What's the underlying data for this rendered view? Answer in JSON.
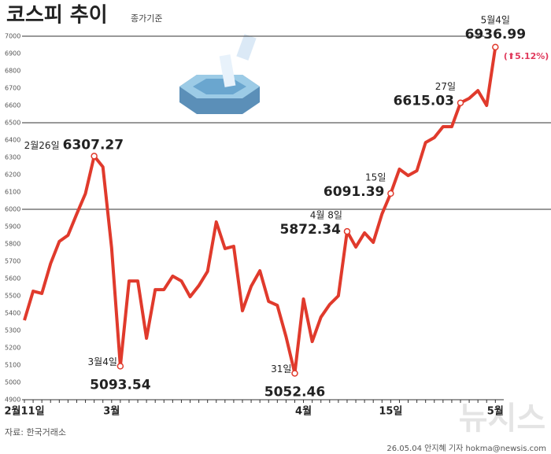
{
  "chart_data": {
    "type": "line",
    "title": "코스피 추이",
    "subtitle": "종가기준",
    "categories": [
      "2월11일",
      null,
      null,
      null,
      null,
      null,
      null,
      null,
      null,
      null,
      "3월",
      null,
      null,
      null,
      null,
      null,
      null,
      null,
      null,
      null,
      null,
      null,
      null,
      null,
      null,
      null,
      null,
      null,
      null,
      null,
      null,
      null,
      "4월",
      null,
      null,
      null,
      null,
      null,
      null,
      null,
      null,
      null,
      "15일",
      null,
      null,
      null,
      null,
      null,
      null,
      null,
      null,
      null,
      null,
      null,
      "5월"
    ],
    "series": [
      {
        "name": "코스피",
        "color": "#e03a2c",
        "values": [
          5359,
          5527,
          5514,
          5686,
          5814,
          5850,
          5973,
          6091,
          6307.27,
          6245,
          5777,
          5093.54,
          5586,
          5586,
          5255,
          5536,
          5536,
          5614,
          5586,
          5495,
          5559,
          5641,
          5927,
          5773,
          5786,
          5414,
          5555,
          5645,
          5468,
          5445,
          5264,
          5052.46,
          5482,
          5236,
          5377,
          5450,
          5500,
          5872.34,
          5782,
          5864,
          5809,
          5973,
          6091.39,
          6232,
          6195,
          6223,
          6386,
          6414,
          6477,
          6477,
          6615.03,
          6641,
          6686,
          6600,
          6936.99
        ],
        "point_labels": [
          null,
          null,
          null,
          null,
          null,
          null,
          null,
          null,
          "2월26일",
          null,
          null,
          "3월4일",
          null,
          null,
          null,
          null,
          null,
          null,
          null,
          null,
          null,
          null,
          null,
          null,
          null,
          null,
          null,
          null,
          null,
          null,
          null,
          "31일",
          null,
          null,
          null,
          null,
          null,
          "4월 8일",
          null,
          null,
          null,
          null,
          "15일",
          null,
          null,
          null,
          null,
          null,
          null,
          null,
          "27일",
          null,
          null,
          null,
          "5월4일"
        ]
      }
    ],
    "change_label": "(⬆5.12%)",
    "ylim": [
      4900,
      7000
    ],
    "yticks": [
      4900,
      5000,
      5100,
      5200,
      5300,
      5400,
      5500,
      5600,
      5700,
      5800,
      5900,
      6000,
      6100,
      6200,
      6300,
      6400,
      6500,
      6600,
      6700,
      6800,
      6900,
      7000
    ],
    "major_gridlines": [
      6000,
      6500,
      7000
    ],
    "source": "자료: 한국거래소",
    "credit": "26.05.04 안지혜 기자 hokma@newsis.com",
    "watermark": "뉴시스"
  }
}
